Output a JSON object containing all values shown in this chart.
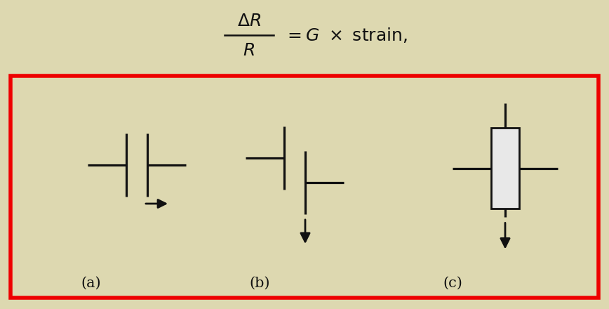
{
  "bg_color": "#ddd8b0",
  "red_box_color": "#ee0000",
  "line_color": "#111111",
  "rect_fill": "#e8e8e8",
  "rect_edge": "#111111",
  "formula_color": "#111111",
  "label_a": "(a)",
  "label_b": "(b)",
  "label_c": "(c)",
  "fig_width": 8.68,
  "fig_height": 4.4,
  "dpi": 100
}
